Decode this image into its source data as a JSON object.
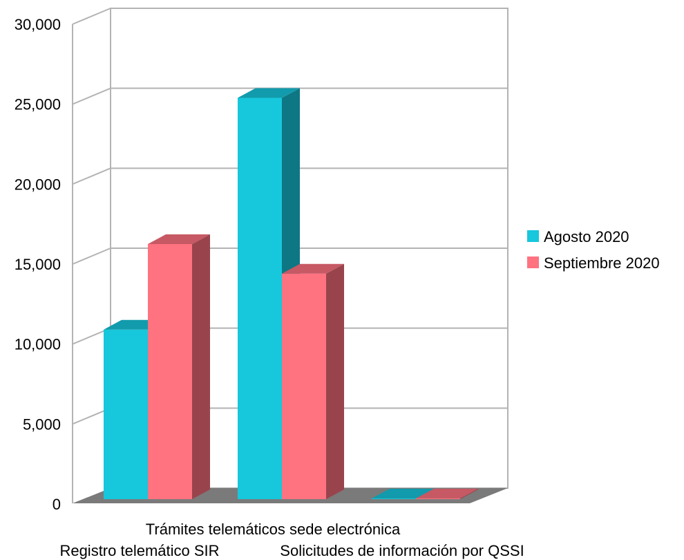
{
  "chart_data": {
    "type": "bar",
    "title": "",
    "xlabel": "",
    "ylabel": "",
    "ylim": [
      0,
      30000
    ],
    "y_ticks": [
      "0",
      "5,000",
      "10,000",
      "15,000",
      "20,000",
      "25,000",
      "30,000"
    ],
    "y_tick_values": [
      0,
      5000,
      10000,
      15000,
      20000,
      25000,
      30000
    ],
    "categories": [
      "Registro telemático SIR",
      "Trámites telemáticos sede electrónica",
      "Solicitudes de información por QSSI"
    ],
    "series": [
      {
        "name": "Agosto 2020",
        "values": [
          10900,
          25800,
          50
        ],
        "color": "#17c7dc"
      },
      {
        "name": "Septiembre 2020",
        "values": [
          16400,
          14500,
          50
        ],
        "color": "#ff7280"
      }
    ],
    "grid": true,
    "three_d": true,
    "legend_position": "right"
  }
}
